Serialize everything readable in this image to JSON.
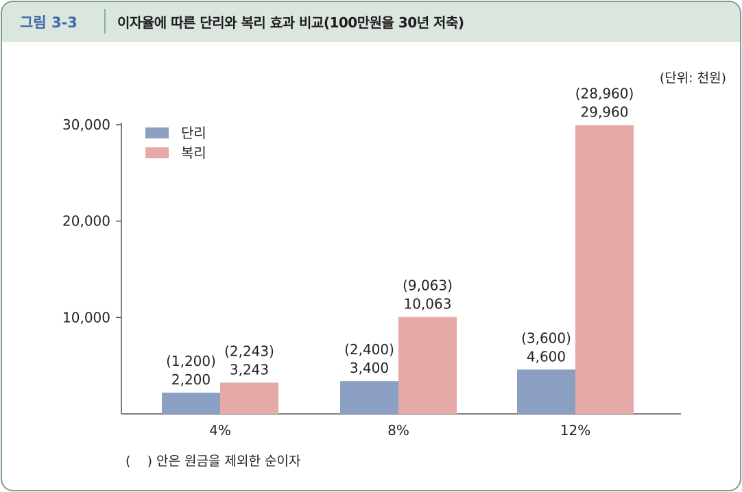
{
  "header": {
    "figure_label": "그림 3-3",
    "title": "이자율에 따른 단리와 복리 효과 비교(100만원을 30년 저축)"
  },
  "unit": "(단위: 천원)",
  "note": "(    ) 안은 원금을 제외한 순이자",
  "colors": {
    "simple": "#8b9fc2",
    "compound": "#e5a9a7",
    "header_bg": "#dbe6df",
    "frame": "#7c9c8e",
    "label_accent": "#3f68a6"
  },
  "chart_data": {
    "type": "bar",
    "title": "이자율에 따른 단리와 복리 효과 비교(100만원을 30년 저축)",
    "xlabel": "",
    "ylabel": "",
    "categories": [
      "4%",
      "8%",
      "12%"
    ],
    "ylim": [
      0,
      30000
    ],
    "yticks": [
      10000,
      20000,
      30000
    ],
    "ytick_labels": [
      "10,000",
      "20,000",
      "30,000"
    ],
    "grid": false,
    "legend_position": "top-left",
    "series": [
      {
        "name": "단리",
        "color": "#8b9fc2",
        "values": [
          2200,
          3400,
          4600
        ],
        "value_labels": [
          "2,200",
          "3,400",
          "4,600"
        ],
        "interest_labels": [
          "(1,200)",
          "(2,400)",
          "(3,600)"
        ]
      },
      {
        "name": "복리",
        "color": "#e5a9a7",
        "values": [
          3243,
          10063,
          29960
        ],
        "value_labels": [
          "3,243",
          "10,063",
          "29,960"
        ],
        "interest_labels": [
          "(2,243)",
          "(9,063)",
          "(28,960)"
        ]
      }
    ]
  }
}
